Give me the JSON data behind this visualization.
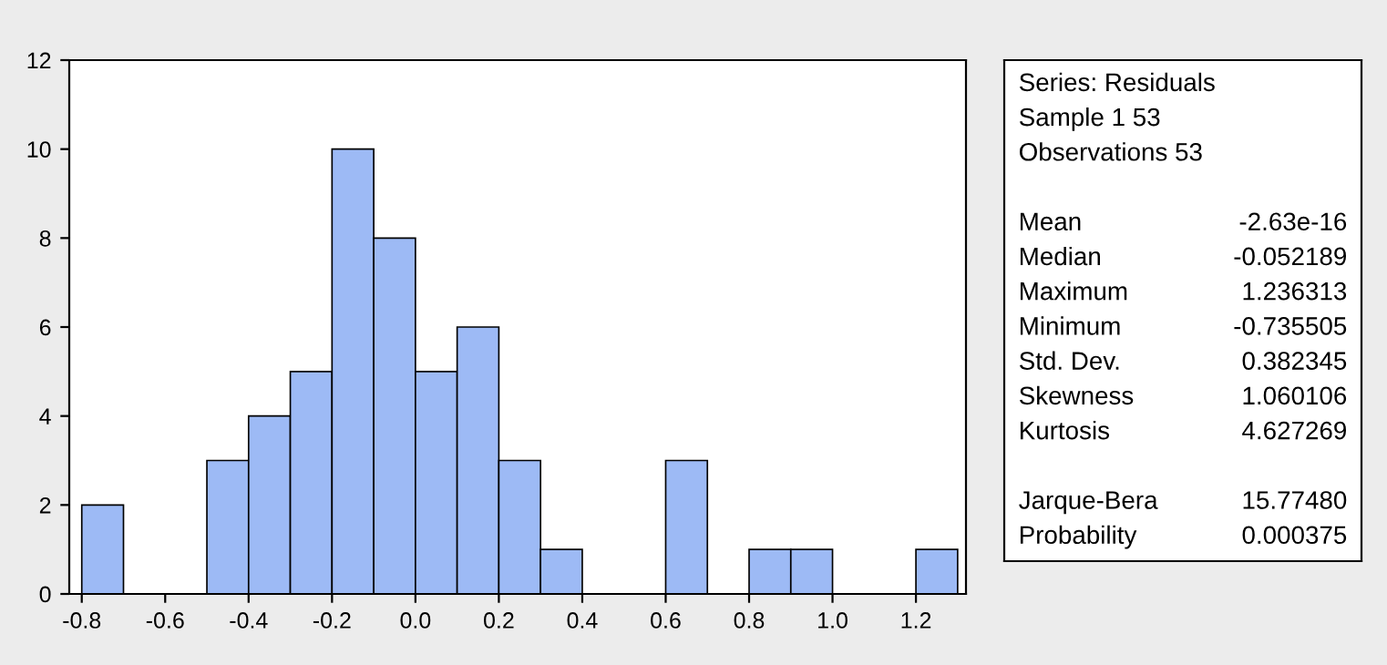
{
  "chart_data": [
    {
      "type": "histogram",
      "bins": [
        -0.8,
        -0.7,
        -0.6,
        -0.5,
        -0.4,
        -0.3,
        -0.2,
        -0.1,
        0.0,
        0.1,
        0.2,
        0.3,
        0.4,
        0.5,
        0.6,
        0.7,
        0.8,
        0.9,
        1.0,
        1.1,
        1.2,
        1.3
      ],
      "values": [
        2,
        0,
        0,
        3,
        4,
        5,
        10,
        8,
        5,
        6,
        3,
        1,
        0,
        0,
        3,
        0,
        1,
        1,
        0,
        0,
        1
      ],
      "color": "#9dbaf5",
      "xlim": [
        -0.83,
        1.32
      ],
      "ylim": [
        0,
        12
      ],
      "xticks": [
        -0.8,
        -0.6,
        -0.4,
        -0.2,
        {
          "value": 0,
          "label": "0.0"
        },
        0.2,
        0.4,
        0.6,
        0.8,
        {
          "value": 1,
          "label": "1.0"
        },
        1.2
      ],
      "yticks": [
        0,
        2,
        4,
        6,
        8,
        10,
        12
      ],
      "grid": false
    },
    {
      "type": "other",
      "title": "Series: Residuals",
      "annotations": [
        "Sample 1 53",
        "Observations 53"
      ],
      "categories": [
        "Mean",
        "Median",
        "Maximum",
        "Minimum",
        "Std. Dev.",
        "Skewness",
        "Kurtosis",
        null,
        "Jarque-Bera",
        "Probability"
      ],
      "value_labels": [
        "-2.63e-16",
        "-0.052189",
        "1.236313",
        "-0.735505",
        "0.382345",
        "1.060106",
        "4.627269",
        null,
        "15.77480",
        "0.000375"
      ]
    }
  ]
}
